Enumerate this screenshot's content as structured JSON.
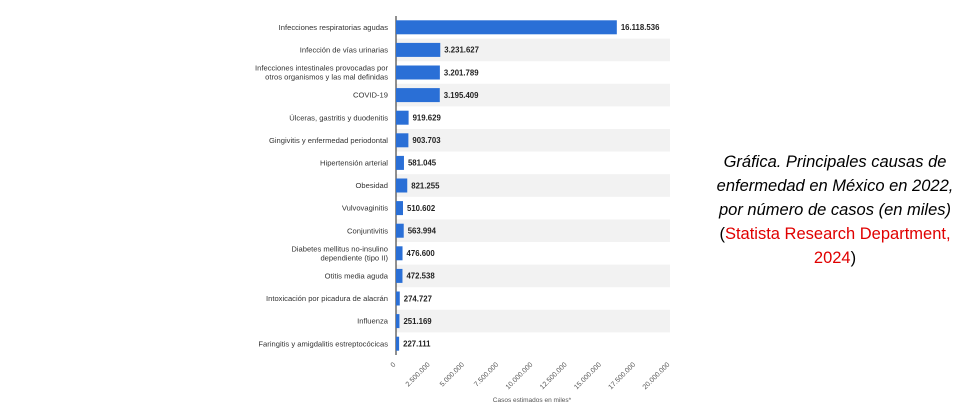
{
  "chart_data": {
    "type": "bar",
    "orientation": "horizontal",
    "categories": [
      "Infecciones respiratorias agudas",
      "Infección de vías urinarias",
      "Infecciones intestinales provocadas por otros organismos y las mal definidas",
      "COVID-19",
      "Úlceras, gastritis y duodenitis",
      "Gingivitis y enfermedad periodontal",
      "Hipertensión arterial",
      "Obesidad",
      "Vulvovaginitis",
      "Conjuntivitis",
      "Diabetes mellitus no-insulino dependiente (tipo II)",
      "Otitis media aguda",
      "Intoxicación por picadura de alacrán",
      "Influenza",
      "Faringitis y amigdalitis estreptocócicas"
    ],
    "category_lines": [
      [
        "Infecciones respiratorias agudas"
      ],
      [
        "Infección de vías urinarias"
      ],
      [
        "Infecciones intestinales provocadas por",
        "otros organismos y las mal definidas"
      ],
      [
        "COVID-19"
      ],
      [
        "Úlceras, gastritis y duodenitis"
      ],
      [
        "Gingivitis y enfermedad periodontal"
      ],
      [
        "Hipertensión arterial"
      ],
      [
        "Obesidad"
      ],
      [
        "Vulvovaginitis"
      ],
      [
        "Conjuntivitis"
      ],
      [
        "Diabetes mellitus no-insulino",
        "dependiente (tipo II)"
      ],
      [
        "Otitis media aguda"
      ],
      [
        "Intoxicación por picadura de alacrán"
      ],
      [
        "Influenza"
      ],
      [
        "Faringitis y amigdalitis estreptocócicas"
      ]
    ],
    "values": [
      16118536,
      3231627,
      3201789,
      3195409,
      919629,
      903703,
      581045,
      821255,
      510602,
      563994,
      476600,
      472538,
      274727,
      251169,
      227111
    ],
    "value_labels": [
      "16.118.536",
      "3.231.627",
      "3.201.789",
      "3.195.409",
      "919.629",
      "903.703",
      "581.045",
      "821.255",
      "510.602",
      "563.994",
      "476.600",
      "472.538",
      "274.727",
      "251.169",
      "227.111"
    ],
    "xlim": [
      0,
      20000000
    ],
    "x_ticks": [
      0,
      2500000,
      5000000,
      7500000,
      10000000,
      12500000,
      15000000,
      17500000,
      20000000
    ],
    "x_tick_labels": [
      "0",
      "2.500.000",
      "5.000.000",
      "7.500.000",
      "10.000.000",
      "12.500.000",
      "15.000.000",
      "17.500.000",
      "20.000.000"
    ],
    "xlabel": "Casos estimados en miles*",
    "ylabel": "",
    "title": "",
    "bar_color": "#2a6fd6",
    "stripe_color": "#f2f2f2",
    "grid": false
  },
  "caption": {
    "main": "Gráfica. Principales causas de enfermedad en México en 2022, por número de casos (en miles)",
    "open_paren": " (",
    "source": "Statista Research Department, 2024",
    "close_paren": ")",
    "source_color": "#e00000"
  }
}
